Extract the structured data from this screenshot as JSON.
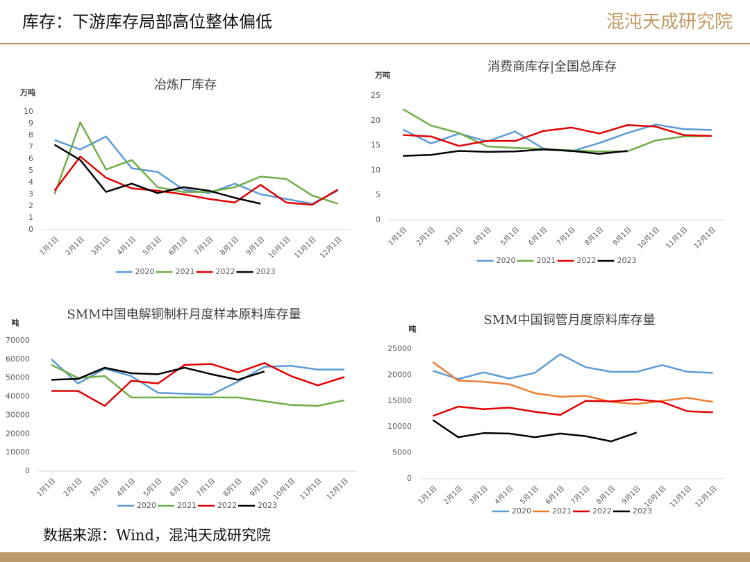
{
  "header": {
    "title": "库存：下游库存局部高位整体偏低",
    "logo": "混沌天成研究院"
  },
  "footer": {
    "source": "数据来源：Wind，混沌天成研究院"
  },
  "chart_data": [
    {
      "type": "line",
      "title": "冶炼厂库存",
      "y_label": "万吨",
      "categories": [
        "1月1日",
        "2月1日",
        "3月1日",
        "4月1日",
        "5月1日",
        "6月1日",
        "7月1日",
        "8月1日",
        "9月1日",
        "10月1日",
        "11月1日",
        "12月1日"
      ],
      "ylim": [
        0,
        10
      ],
      "yticks": [
        0,
        1,
        2,
        3,
        4,
        5,
        6,
        7,
        8,
        9,
        10
      ],
      "grid": false,
      "series": [
        {
          "name": "2020",
          "color": "#5b9bd5",
          "values": [
            7.6,
            6.8,
            7.9,
            5.2,
            4.9,
            3.4,
            3.1,
            3.9,
            3.0,
            2.6,
            2.2,
            3.3
          ]
        },
        {
          "name": "2021",
          "color": "#70ad47",
          "values": [
            3.0,
            9.1,
            5.1,
            5.9,
            3.6,
            3.2,
            3.2,
            3.6,
            4.5,
            4.3,
            2.9,
            2.2
          ]
        },
        {
          "name": "2022",
          "color": "#e00000",
          "values": [
            3.3,
            6.2,
            4.4,
            3.5,
            3.3,
            3.0,
            2.6,
            2.3,
            3.8,
            2.3,
            2.1,
            3.4
          ]
        },
        {
          "name": "2023",
          "color": "#000000",
          "values": [
            7.2,
            5.9,
            3.2,
            3.9,
            3.1,
            3.6,
            3.3,
            2.7,
            2.2,
            null,
            null,
            null
          ]
        }
      ]
    },
    {
      "type": "line",
      "title": "消费商库存|全国总库存",
      "y_label": "万吨",
      "categories": [
        "1月1日",
        "2月1日",
        "3月1日",
        "4月1日",
        "5月1日",
        "6月1日",
        "7月1日",
        "8月1日",
        "9月1日",
        "10月1日",
        "11月1日",
        "12月1日"
      ],
      "ylim": [
        0,
        25
      ],
      "yticks": [
        0,
        5,
        10,
        15,
        20,
        25
      ],
      "grid": false,
      "series": [
        {
          "name": "2020",
          "color": "#5b9bd5",
          "values": [
            18.2,
            15.4,
            17.4,
            15.8,
            17.8,
            14.4,
            13.8,
            15.5,
            17.5,
            19.2,
            18.3,
            18.1
          ]
        },
        {
          "name": "2021",
          "color": "#70ad47",
          "values": [
            22.3,
            19.0,
            17.5,
            14.8,
            14.5,
            14.3,
            14.0,
            13.8,
            13.8,
            16.0,
            16.8,
            16.9
          ]
        },
        {
          "name": "2022",
          "color": "#e00000",
          "values": [
            17.1,
            16.8,
            14.9,
            15.9,
            15.9,
            17.9,
            18.6,
            17.4,
            19.1,
            18.8,
            17.1,
            16.9
          ]
        },
        {
          "name": "2023",
          "color": "#000000",
          "values": [
            12.9,
            13.1,
            13.9,
            13.7,
            13.8,
            14.2,
            13.9,
            13.3,
            13.9,
            null,
            null,
            null
          ]
        }
      ]
    },
    {
      "type": "line",
      "title": "SMM中国电解铜制杆月度样本原料库存量",
      "y_label": "吨",
      "categories": [
        "1月1日",
        "2月1日",
        "3月1日",
        "4月1日",
        "5月1日",
        "6月1日",
        "7月1日",
        "8月1日",
        "9月1日",
        "10月1日",
        "11月1日",
        "12月1日"
      ],
      "ylim": [
        0,
        70000
      ],
      "yticks": [
        0,
        10000,
        20000,
        30000,
        40000,
        50000,
        60000,
        70000
      ],
      "grid": false,
      "series": [
        {
          "name": "2020",
          "color": "#5b9bd5",
          "values": [
            60000,
            47000,
            55000,
            51000,
            42000,
            41500,
            41000,
            48000,
            56000,
            56500,
            54500,
            54500
          ]
        },
        {
          "name": "2021",
          "color": "#70ad47",
          "values": [
            57000,
            50000,
            51000,
            39500,
            39500,
            39500,
            39500,
            39500,
            37500,
            35500,
            35000,
            38000
          ]
        },
        {
          "name": "2022",
          "color": "#e00000",
          "values": [
            43000,
            43000,
            35000,
            48500,
            47000,
            57000,
            57500,
            53000,
            58000,
            51000,
            46000,
            50500
          ]
        },
        {
          "name": "2023",
          "color": "#000000",
          "values": [
            49000,
            49500,
            55500,
            52500,
            52000,
            55500,
            52000,
            49000,
            53500,
            null,
            null,
            null
          ]
        }
      ]
    },
    {
      "type": "line",
      "title": "SMM中国铜管月度原料库存量",
      "y_label": "吨",
      "categories": [
        "1月1日",
        "2月1日",
        "3月1日",
        "4月1日",
        "5月1日",
        "6月1日",
        "7月1日",
        "8月1日",
        "9月1日",
        "10月1日",
        "11月1日",
        "12月1日"
      ],
      "ylim": [
        0,
        25000
      ],
      "yticks": [
        0,
        5000,
        10000,
        15000,
        20000,
        25000
      ],
      "grid": false,
      "series": [
        {
          "name": "2020",
          "color": "#5b9bd5",
          "values": [
            20800,
            19200,
            20500,
            19300,
            20400,
            24000,
            21500,
            20600,
            20600,
            21900,
            20600,
            20400
          ]
        },
        {
          "name": "2021",
          "color": "#ed7d31",
          "values": [
            22500,
            18900,
            18700,
            18200,
            16500,
            15800,
            16000,
            14800,
            14400,
            15000,
            15600,
            14800
          ]
        },
        {
          "name": "2022",
          "color": "#e00000",
          "values": [
            12100,
            13900,
            13400,
            13700,
            12900,
            12300,
            15000,
            14900,
            15300,
            14800,
            13000,
            12800
          ]
        },
        {
          "name": "2023",
          "color": "#000000",
          "values": [
            11300,
            8000,
            8800,
            8700,
            8000,
            8700,
            8200,
            7200,
            8900,
            null,
            null,
            null
          ]
        }
      ]
    }
  ]
}
